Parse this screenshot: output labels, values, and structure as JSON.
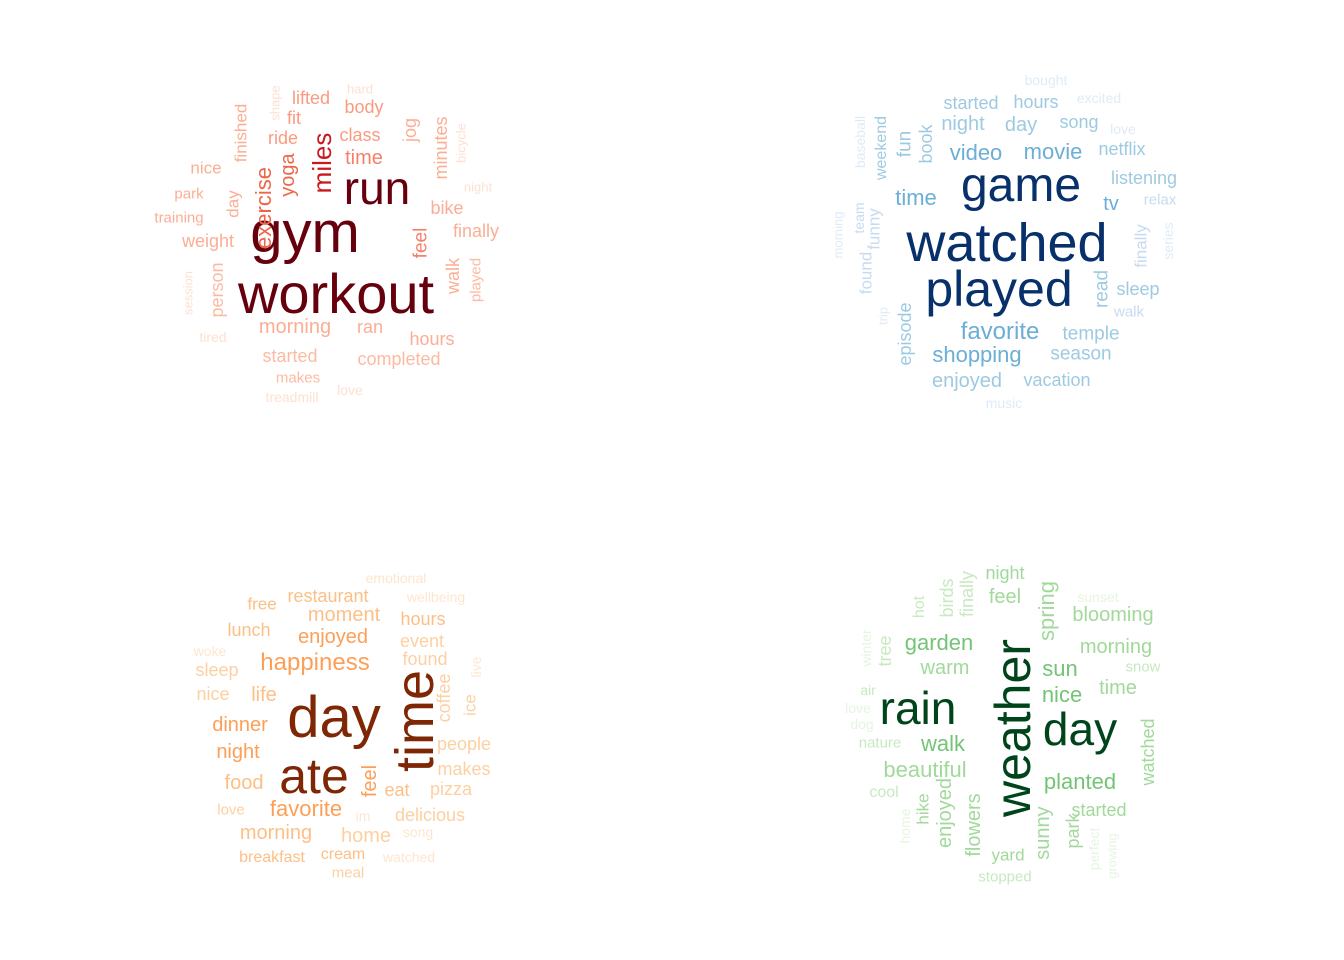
{
  "clouds": [
    {
      "name": "exercise-word-cloud",
      "words": [
        {
          "text": "workout",
          "color": "#67000d"
        },
        {
          "text": "gym",
          "color": "#67000d"
        },
        {
          "text": "run",
          "color": "#67000d"
        },
        {
          "text": "miles",
          "color": "#cb181d"
        },
        {
          "text": "exercise",
          "color": "#ef6548"
        },
        {
          "text": "yoga",
          "color": "#ef6548"
        },
        {
          "text": "time",
          "color": "#f4806a"
        },
        {
          "text": "class",
          "color": "#fb9a80"
        },
        {
          "text": "body",
          "color": "#fb9a80"
        },
        {
          "text": "lifted",
          "color": "#fb9a80"
        },
        {
          "text": "fit",
          "color": "#fb9a80"
        },
        {
          "text": "hard",
          "color": "#fde0d2"
        },
        {
          "text": "shape",
          "color": "#fde0d2"
        },
        {
          "text": "ride",
          "color": "#fb9a80"
        },
        {
          "text": "finished",
          "color": "#fcae94"
        },
        {
          "text": "jog",
          "color": "#fcae94"
        },
        {
          "text": "minutes",
          "color": "#fcae94"
        },
        {
          "text": "bicycle",
          "color": "#fde0d2"
        },
        {
          "text": "nice",
          "color": "#fcae94"
        },
        {
          "text": "park",
          "color": "#fcae94"
        },
        {
          "text": "day",
          "color": "#fcae94"
        },
        {
          "text": "night",
          "color": "#fde0d2"
        },
        {
          "text": "bike",
          "color": "#fcae94"
        },
        {
          "text": "training",
          "color": "#fcae94"
        },
        {
          "text": "weight",
          "color": "#fcae94"
        },
        {
          "text": "finally",
          "color": "#fcae94"
        },
        {
          "text": "feel",
          "color": "#f4806a"
        },
        {
          "text": "walk",
          "color": "#fcae94"
        },
        {
          "text": "played",
          "color": "#fcbba1"
        },
        {
          "text": "session",
          "color": "#fde0d2"
        },
        {
          "text": "person",
          "color": "#fcbba1"
        },
        {
          "text": "morning",
          "color": "#fcae94"
        },
        {
          "text": "ran",
          "color": "#fcae94"
        },
        {
          "text": "hours",
          "color": "#fcae94"
        },
        {
          "text": "tired",
          "color": "#fde0d2"
        },
        {
          "text": "started",
          "color": "#fcbba1"
        },
        {
          "text": "completed",
          "color": "#fcbba1"
        },
        {
          "text": "makes",
          "color": "#fcbba1"
        },
        {
          "text": "treadmill",
          "color": "#fde0d2"
        },
        {
          "text": "love",
          "color": "#fde0d2"
        }
      ]
    },
    {
      "name": "entertainment-word-cloud",
      "words": [
        {
          "text": "watched",
          "color": "#08306b"
        },
        {
          "text": "game",
          "color": "#08306b"
        },
        {
          "text": "played",
          "color": "#08306b"
        },
        {
          "text": "bought",
          "color": "#deebf7"
        },
        {
          "text": "started",
          "color": "#9ecae1"
        },
        {
          "text": "hours",
          "color": "#9ecae1"
        },
        {
          "text": "excited",
          "color": "#deebf7"
        },
        {
          "text": "night",
          "color": "#9ecae1"
        },
        {
          "text": "day",
          "color": "#9ecae1"
        },
        {
          "text": "song",
          "color": "#9ecae1"
        },
        {
          "text": "love",
          "color": "#deebf7"
        },
        {
          "text": "video",
          "color": "#6baed6"
        },
        {
          "text": "movie",
          "color": "#6baed6"
        },
        {
          "text": "netflix",
          "color": "#9ecae1"
        },
        {
          "text": "listening",
          "color": "#9ecae1"
        },
        {
          "text": "time",
          "color": "#6baed6"
        },
        {
          "text": "tv",
          "color": "#6baed6"
        },
        {
          "text": "relax",
          "color": "#c6dbef"
        },
        {
          "text": "baseball",
          "color": "#deebf7"
        },
        {
          "text": "weekend",
          "color": "#9ecae1"
        },
        {
          "text": "fun",
          "color": "#9ecae1"
        },
        {
          "text": "book",
          "color": "#9ecae1"
        },
        {
          "text": "team",
          "color": "#c6dbef"
        },
        {
          "text": "funny",
          "color": "#c6dbef"
        },
        {
          "text": "morning",
          "color": "#deebf7"
        },
        {
          "text": "found",
          "color": "#c6dbef"
        },
        {
          "text": "trip",
          "color": "#deebf7"
        },
        {
          "text": "finally",
          "color": "#c6dbef"
        },
        {
          "text": "series",
          "color": "#deebf7"
        },
        {
          "text": "read",
          "color": "#9ecae1"
        },
        {
          "text": "sleep",
          "color": "#9ecae1"
        },
        {
          "text": "walk",
          "color": "#c6dbef"
        },
        {
          "text": "episode",
          "color": "#9ecae1"
        },
        {
          "text": "favorite",
          "color": "#6baed6"
        },
        {
          "text": "temple",
          "color": "#9ecae1"
        },
        {
          "text": "shopping",
          "color": "#6baed6"
        },
        {
          "text": "season",
          "color": "#9ecae1"
        },
        {
          "text": "enjoyed",
          "color": "#9ecae1"
        },
        {
          "text": "vacation",
          "color": "#9ecae1"
        },
        {
          "text": "music",
          "color": "#deebf7"
        }
      ]
    },
    {
      "name": "food-word-cloud",
      "words": [
        {
          "text": "day",
          "color": "#7f2704"
        },
        {
          "text": "ate",
          "color": "#7f2704"
        },
        {
          "text": "time",
          "color": "#7f2704"
        },
        {
          "text": "emotional",
          "color": "#fee6ce"
        },
        {
          "text": "restaurant",
          "color": "#fdbf86"
        },
        {
          "text": "wellbeing",
          "color": "#fee6ce"
        },
        {
          "text": "free",
          "color": "#fdbf86"
        },
        {
          "text": "moment",
          "color": "#fdbf86"
        },
        {
          "text": "hours",
          "color": "#fdbf86"
        },
        {
          "text": "lunch",
          "color": "#fdbf86"
        },
        {
          "text": "enjoyed",
          "color": "#fd9f56"
        },
        {
          "text": "event",
          "color": "#fdd0a2"
        },
        {
          "text": "woke",
          "color": "#fee6ce"
        },
        {
          "text": "happiness",
          "color": "#fd9f56"
        },
        {
          "text": "found",
          "color": "#fdd0a2"
        },
        {
          "text": "sleep",
          "color": "#fdd0a2"
        },
        {
          "text": "live",
          "color": "#fee6ce"
        },
        {
          "text": "nice",
          "color": "#fdd0a2"
        },
        {
          "text": "life",
          "color": "#fdbf86"
        },
        {
          "text": "coffee",
          "color": "#fdd0a2"
        },
        {
          "text": "ice",
          "color": "#fdd0a2"
        },
        {
          "text": "dinner",
          "color": "#fd9f56"
        },
        {
          "text": "night",
          "color": "#fd9f56"
        },
        {
          "text": "people",
          "color": "#fdd0a2"
        },
        {
          "text": "feel",
          "color": "#fd9f56"
        },
        {
          "text": "makes",
          "color": "#fdd0a2"
        },
        {
          "text": "food",
          "color": "#fdbf86"
        },
        {
          "text": "eat",
          "color": "#fdbf86"
        },
        {
          "text": "pizza",
          "color": "#fdd0a2"
        },
        {
          "text": "love",
          "color": "#fdd0a2"
        },
        {
          "text": "favorite",
          "color": "#fd9f56"
        },
        {
          "text": "im",
          "color": "#fee6ce"
        },
        {
          "text": "delicious",
          "color": "#fdd0a2"
        },
        {
          "text": "morning",
          "color": "#fdbf86"
        },
        {
          "text": "home",
          "color": "#fdd0a2"
        },
        {
          "text": "song",
          "color": "#fee6ce"
        },
        {
          "text": "breakfast",
          "color": "#fdbf86"
        },
        {
          "text": "cream",
          "color": "#fdbf86"
        },
        {
          "text": "watched",
          "color": "#fee6ce"
        },
        {
          "text": "meal",
          "color": "#fdd0a2"
        }
      ]
    },
    {
      "name": "weather-word-cloud",
      "words": [
        {
          "text": "weather",
          "color": "#00441b"
        },
        {
          "text": "rain",
          "color": "#00441b"
        },
        {
          "text": "day",
          "color": "#00441b"
        },
        {
          "text": "night",
          "color": "#a1d99b"
        },
        {
          "text": "sunset",
          "color": "#e5f5e0"
        },
        {
          "text": "hot",
          "color": "#c7e9c0"
        },
        {
          "text": "birds",
          "color": "#c7e9c0"
        },
        {
          "text": "finally",
          "color": "#c7e9c0"
        },
        {
          "text": "feel",
          "color": "#a1d99b"
        },
        {
          "text": "spring",
          "color": "#a1d99b"
        },
        {
          "text": "blooming",
          "color": "#a1d99b"
        },
        {
          "text": "winter",
          "color": "#e5f5e0"
        },
        {
          "text": "tree",
          "color": "#c7e9c0"
        },
        {
          "text": "garden",
          "color": "#74c476"
        },
        {
          "text": "morning",
          "color": "#a1d99b"
        },
        {
          "text": "warm",
          "color": "#a1d99b"
        },
        {
          "text": "sun",
          "color": "#74c476"
        },
        {
          "text": "snow",
          "color": "#c7e9c0"
        },
        {
          "text": "air",
          "color": "#c7e9c0"
        },
        {
          "text": "nice",
          "color": "#74c476"
        },
        {
          "text": "time",
          "color": "#a1d99b"
        },
        {
          "text": "love",
          "color": "#e5f5e0"
        },
        {
          "text": "dog",
          "color": "#e5f5e0"
        },
        {
          "text": "nature",
          "color": "#c7e9c0"
        },
        {
          "text": "walk",
          "color": "#74c476"
        },
        {
          "text": "watched",
          "color": "#a1d99b"
        },
        {
          "text": "beautiful",
          "color": "#a1d99b"
        },
        {
          "text": "planted",
          "color": "#74c476"
        },
        {
          "text": "cool",
          "color": "#c7e9c0"
        },
        {
          "text": "hike",
          "color": "#a1d99b"
        },
        {
          "text": "home",
          "color": "#e5f5e0"
        },
        {
          "text": "enjoyed",
          "color": "#a1d99b"
        },
        {
          "text": "flowers",
          "color": "#a1d99b"
        },
        {
          "text": "sunny",
          "color": "#a1d99b"
        },
        {
          "text": "park",
          "color": "#a1d99b"
        },
        {
          "text": "started",
          "color": "#a1d99b"
        },
        {
          "text": "perfect",
          "color": "#e5f5e0"
        },
        {
          "text": "growing",
          "color": "#e5f5e0"
        },
        {
          "text": "yard",
          "color": "#a1d99b"
        },
        {
          "text": "stopped",
          "color": "#c7e9c0"
        }
      ]
    }
  ]
}
